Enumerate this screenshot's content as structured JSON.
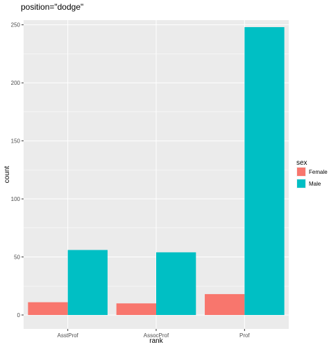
{
  "chart_data": {
    "type": "bar",
    "title": "position=\"dodge\"",
    "xlabel": "rank",
    "ylabel": "count",
    "categories": [
      "AsstProf",
      "AssocProf",
      "Prof"
    ],
    "series": [
      {
        "name": "Female",
        "values": [
          11,
          10,
          18
        ],
        "color": "#F8766D"
      },
      {
        "name": "Male",
        "values": [
          56,
          54,
          248
        ],
        "color": "#00BFC4"
      }
    ],
    "ylim": [
      -12,
      254
    ],
    "yticks": [
      0,
      50,
      100,
      150,
      200,
      250
    ],
    "grid": true,
    "legend": {
      "title": "sex",
      "position": "right"
    },
    "panel_color": "#EBEBEB",
    "grid_color": "#FFFFFF"
  }
}
